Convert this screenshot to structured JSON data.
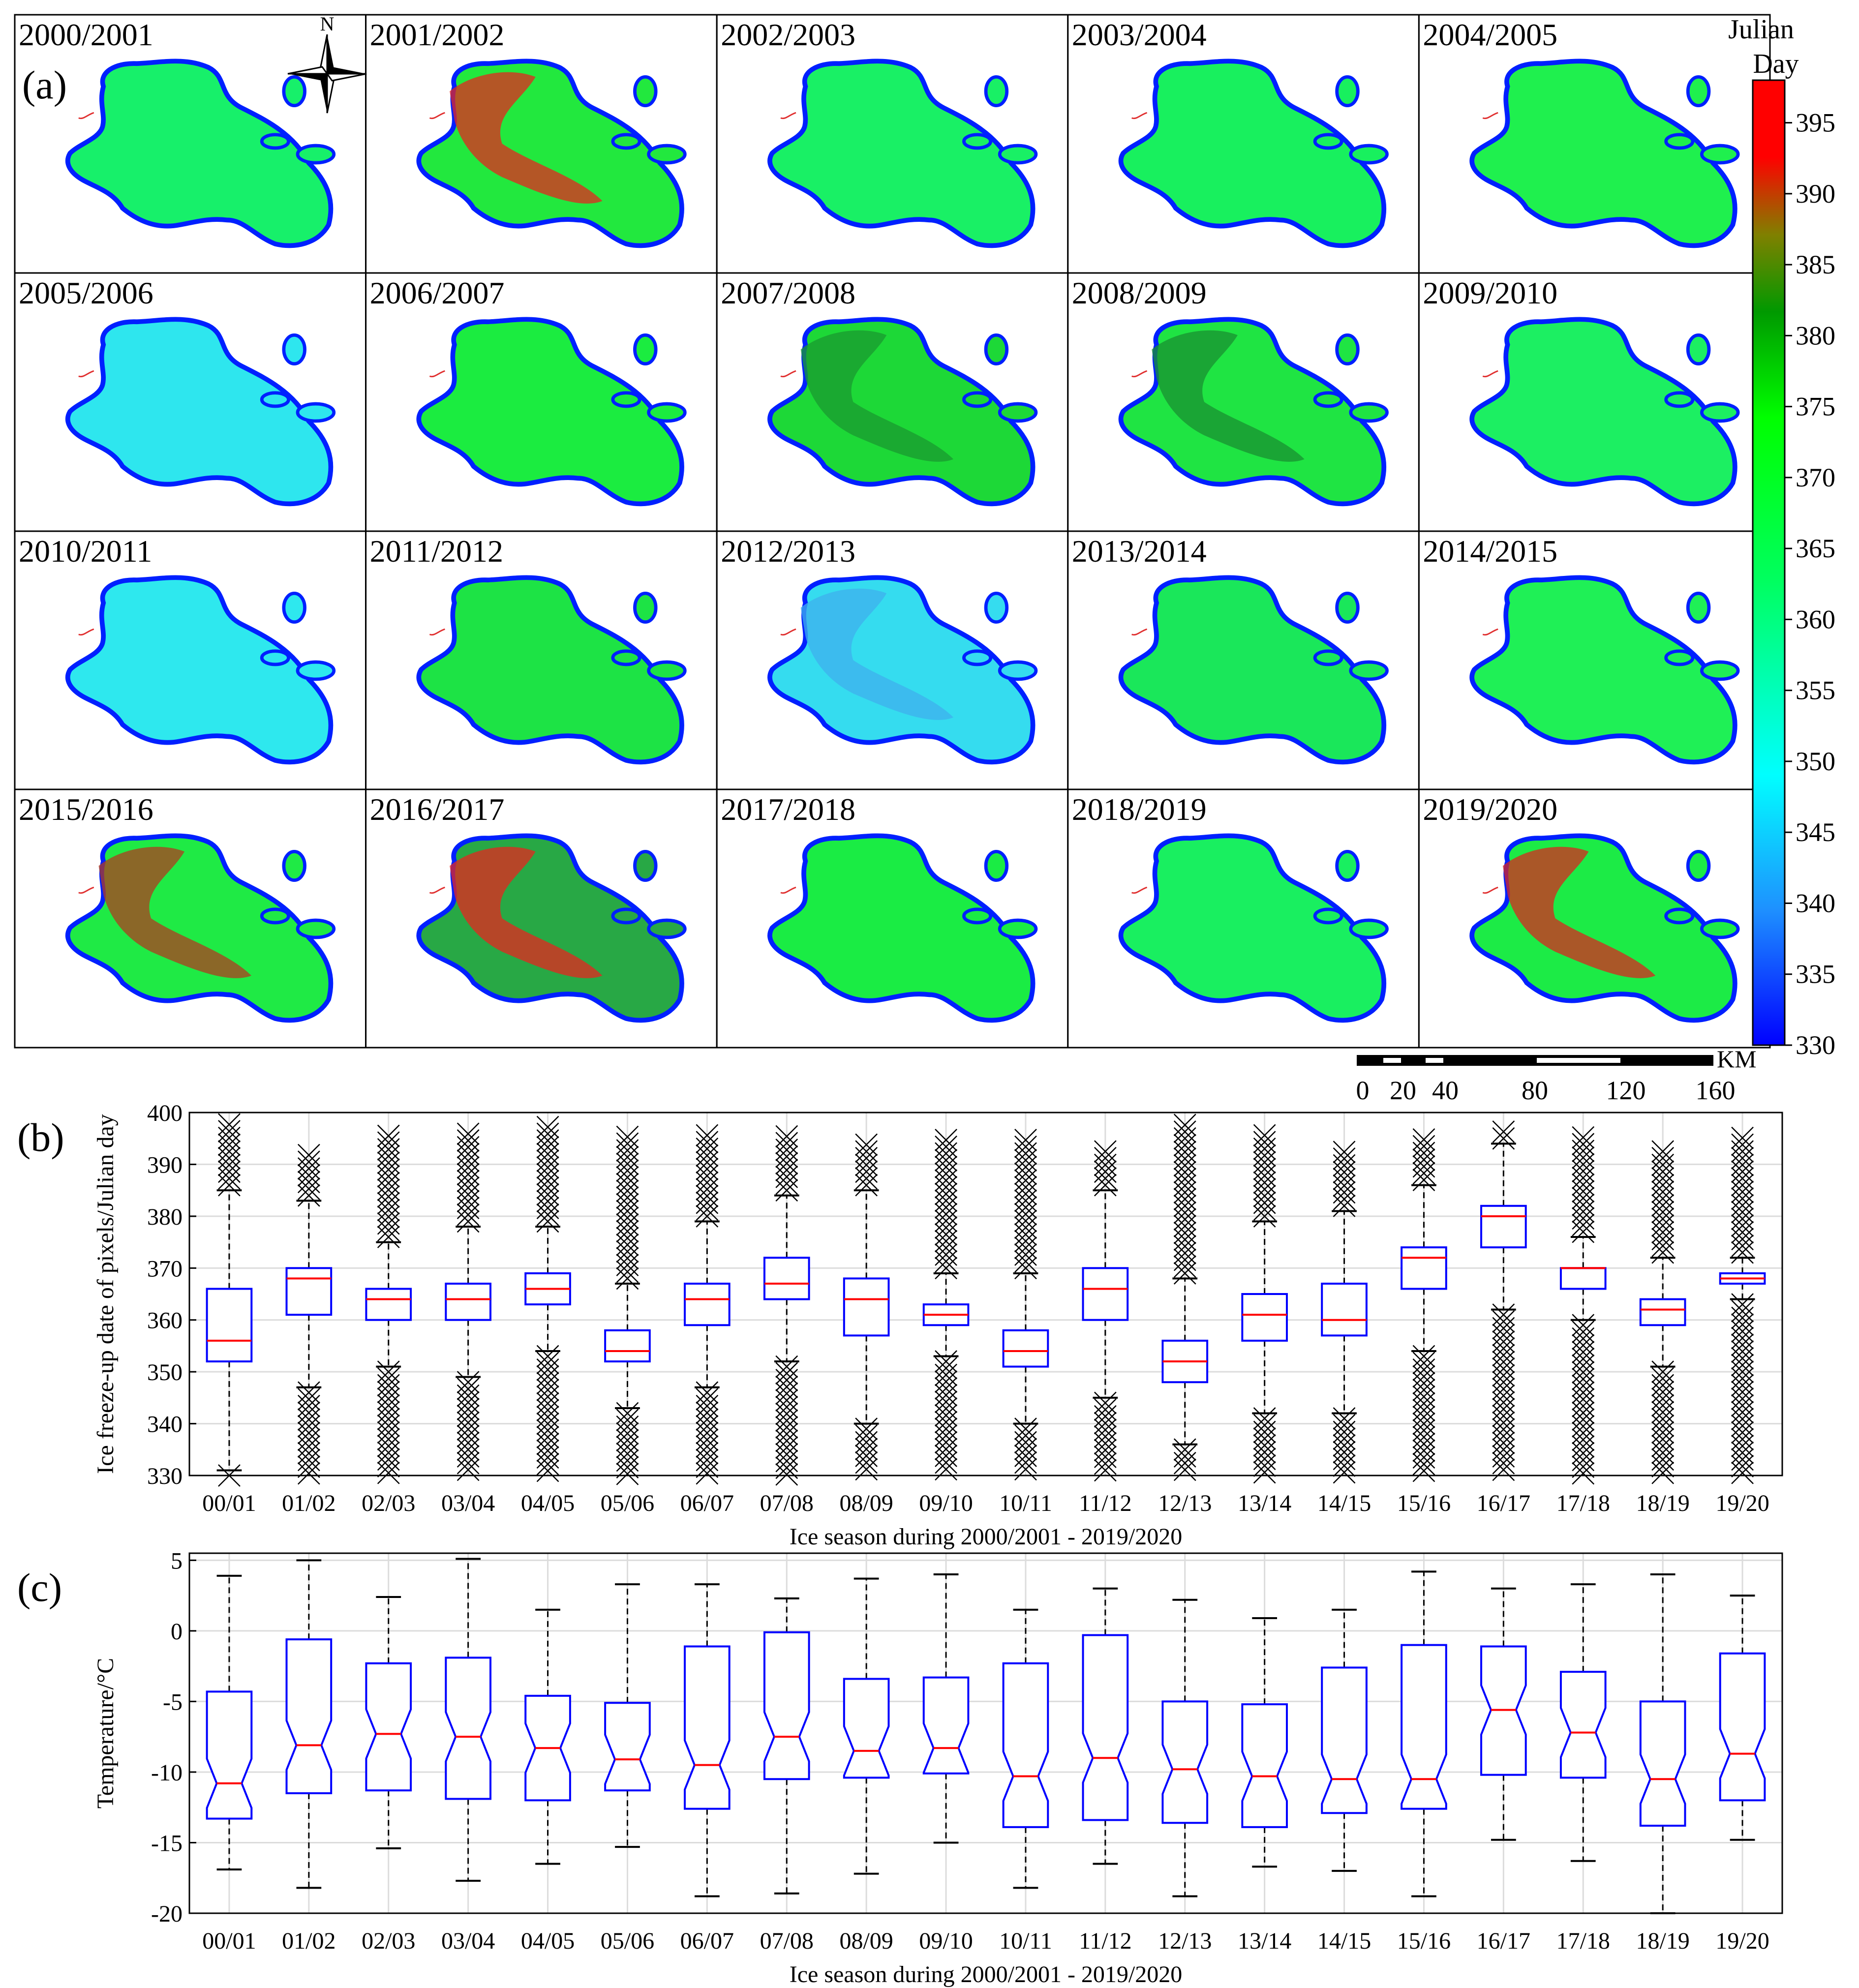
{
  "panel_labels": {
    "a": "(a)",
    "b": "(b)",
    "c": "(c)"
  },
  "colors": {
    "box": "#0000ff",
    "median": "#ff0000",
    "whisker": "#000000",
    "outlier": "#000000",
    "grid": "#dcdcdc",
    "colormap": [
      "#0000ff",
      "#1e90ff",
      "#00ffff",
      "#00ff60",
      "#00ff00",
      "#009900",
      "#808000",
      "#ff0000"
    ]
  },
  "compass": {
    "label": "N",
    "icon": "north-arrow-icon"
  },
  "maps": {
    "titles": [
      "2000/2001",
      "2001/2002",
      "2002/2003",
      "2003/2004",
      "2004/2005",
      "2005/2006",
      "2006/2007",
      "2007/2008",
      "2008/2009",
      "2009/2010",
      "2010/2011",
      "2011/2012",
      "2012/2013",
      "2013/2014",
      "2014/2015",
      "2015/2016",
      "2016/2017",
      "2017/2018",
      "2018/2019",
      "2019/2020"
    ],
    "fill": [
      "#17f06a",
      "#22e83e",
      "#19f065",
      "#18f05e",
      "#1ff04e",
      "#2ee6ee",
      "#1bec40",
      "#1dd837",
      "#1fe443",
      "#1cef62",
      "#2ee8ee",
      "#1de345",
      "#35dcef",
      "#1ae75a",
      "#1ff056",
      "#1fea45",
      "#28a845",
      "#1aec44",
      "#19ef60",
      "#1ceb46"
    ],
    "patch": [
      null,
      "#e6261f",
      null,
      null,
      null,
      null,
      null,
      "#1a9a30",
      "#1a9030",
      null,
      null,
      null,
      "#3fb0ee",
      null,
      null,
      "#b03b1f",
      "#e6261f",
      null,
      null,
      "#d9261f"
    ]
  },
  "colorbar": {
    "title_line1": "Julian",
    "title_line2": "Day",
    "min": 330,
    "max": 398,
    "ticks": [
      395,
      390,
      385,
      380,
      375,
      370,
      365,
      360,
      355,
      350,
      345,
      340,
      335,
      330
    ]
  },
  "scalebar": {
    "unit": "KM",
    "ticks": [
      "0",
      "20",
      "40",
      "80",
      "120",
      "160"
    ]
  },
  "chart_data": [
    {
      "type": "box",
      "panel": "(b)",
      "title": "",
      "ylabel": "Ice freeze-up date of pixels/Julian day",
      "xlabel": "Ice season during 2000/2001 - 2019/2020",
      "ylim": [
        330,
        400
      ],
      "yticks": [
        330,
        340,
        350,
        360,
        370,
        380,
        390,
        400
      ],
      "grid": true,
      "categories": [
        "00/01",
        "01/02",
        "02/03",
        "03/04",
        "04/05",
        "05/06",
        "06/07",
        "07/08",
        "08/09",
        "09/10",
        "10/11",
        "11/12",
        "12/13",
        "13/14",
        "14/15",
        "15/16",
        "16/17",
        "17/18",
        "18/19",
        "19/20"
      ],
      "q1": [
        352,
        361,
        360,
        360,
        363,
        352,
        359,
        364,
        357,
        359,
        351,
        360,
        348,
        356,
        357,
        366,
        374,
        366,
        359,
        367
      ],
      "median": [
        356,
        368,
        364,
        364,
        366,
        354,
        364,
        367,
        364,
        361,
        354,
        366,
        352,
        361,
        360,
        372,
        380,
        370,
        362,
        368
      ],
      "q3": [
        366,
        370,
        366,
        367,
        369,
        358,
        367,
        372,
        368,
        363,
        358,
        370,
        356,
        365,
        367,
        374,
        382,
        370,
        364,
        369
      ],
      "whisker_low": [
        331,
        347,
        351,
        349,
        354,
        343,
        347,
        352,
        340,
        353,
        340,
        345,
        336,
        342,
        342,
        354,
        362,
        360,
        351,
        364
      ],
      "whisker_high": [
        385,
        383,
        375,
        378,
        378,
        367,
        379,
        384,
        385,
        369,
        369,
        385,
        368,
        379,
        381,
        386,
        394,
        376,
        372,
        372
      ],
      "outlier_low_min": [
        330,
        330,
        330,
        330,
        330,
        330,
        330,
        330,
        330,
        330,
        330,
        330,
        330,
        330,
        330,
        330,
        330,
        330,
        330,
        330
      ],
      "outlier_high_max": [
        398,
        393,
        396,
        396,
        398,
        396,
        396,
        396,
        395,
        396,
        395,
        393,
        398,
        396,
        393,
        396,
        397,
        396,
        393,
        396
      ]
    },
    {
      "type": "box",
      "panel": "(c)",
      "title": "",
      "ylabel": "Temperature/°C",
      "xlabel": "Ice season during 2000/2001 - 2019/2020",
      "ylim": [
        -20,
        5.5
      ],
      "yticks": [
        -20,
        -15,
        -10,
        -5,
        0,
        5
      ],
      "ytick_labels": [
        "-20",
        "-15",
        "-10",
        "-5",
        "0",
        "5"
      ],
      "grid": true,
      "notched": true,
      "categories": [
        "00/01",
        "01/02",
        "02/03",
        "03/04",
        "04/05",
        "05/06",
        "06/07",
        "07/08",
        "08/09",
        "09/10",
        "10/11",
        "11/12",
        "12/13",
        "13/14",
        "14/15",
        "15/16",
        "16/17",
        "17/18",
        "18/19",
        "19/20"
      ],
      "q1": [
        -13.3,
        -11.5,
        -11.3,
        -11.9,
        -12.0,
        -11.3,
        -12.6,
        -10.5,
        -10.4,
        -10.1,
        -13.9,
        -13.4,
        -13.6,
        -13.9,
        -12.9,
        -12.6,
        -10.2,
        -10.4,
        -13.8,
        -12.0
      ],
      "median": [
        -10.8,
        -8.1,
        -7.3,
        -7.5,
        -8.3,
        -9.1,
        -9.5,
        -7.5,
        -8.5,
        -8.3,
        -10.3,
        -9.0,
        -9.8,
        -10.3,
        -10.5,
        -10.5,
        -5.6,
        -7.2,
        -10.5,
        -8.7
      ],
      "q3": [
        -4.3,
        -0.6,
        -2.3,
        -1.9,
        -4.6,
        -5.1,
        -1.1,
        -0.1,
        -3.4,
        -3.3,
        -2.3,
        -0.3,
        -5.0,
        -5.2,
        -2.6,
        -1.0,
        -1.1,
        -2.9,
        -5.0,
        -1.6
      ],
      "whisker_low": [
        -16.9,
        -18.2,
        -15.4,
        -17.7,
        -16.5,
        -15.3,
        -18.8,
        -18.6,
        -17.2,
        -15.0,
        -18.2,
        -16.5,
        -18.8,
        -16.7,
        -17.0,
        -18.8,
        -14.8,
        -16.3,
        -20.0,
        -14.8
      ],
      "whisker_high": [
        3.9,
        5.0,
        2.4,
        5.1,
        1.5,
        3.3,
        3.3,
        2.3,
        3.7,
        4.0,
        1.5,
        3.0,
        2.2,
        0.9,
        1.5,
        4.2,
        3.0,
        3.3,
        4.0,
        2.5
      ]
    }
  ]
}
